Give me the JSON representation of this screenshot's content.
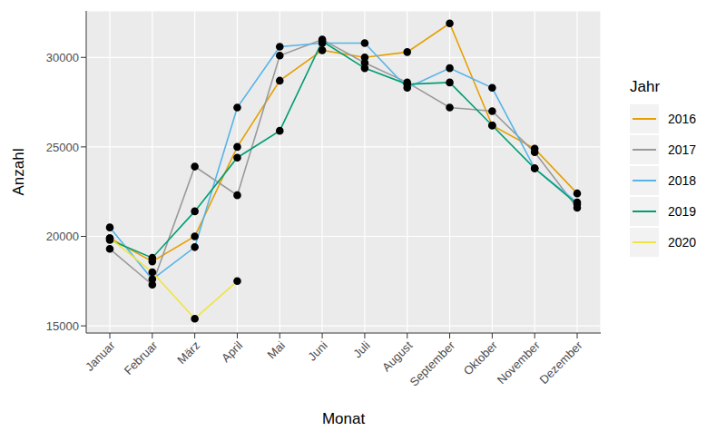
{
  "chart_data": {
    "type": "line",
    "x_label": "Monat",
    "y_label": "Anzahl",
    "legend_title": "Jahr",
    "categories": [
      "Januar",
      "Februar",
      "März",
      "April",
      "Mai",
      "Juni",
      "Juli",
      "August",
      "September",
      "Oktober",
      "November",
      "Dezember"
    ],
    "series": [
      {
        "name": "2016",
        "color": "#E69F00",
        "values": [
          19900,
          18600,
          20000,
          25000,
          28700,
          30400,
          30000,
          30300,
          31900,
          26200,
          24900,
          22400
        ]
      },
      {
        "name": "2017",
        "color": "#999999",
        "values": [
          19300,
          17300,
          23900,
          22300,
          30100,
          31000,
          29700,
          28600,
          27200,
          27000,
          24700,
          21600
        ]
      },
      {
        "name": "2018",
        "color": "#56B4E9",
        "values": [
          20500,
          17600,
          19400,
          27200,
          30600,
          30800,
          30800,
          28300,
          29400,
          28300,
          23800,
          21900
        ]
      },
      {
        "name": "2019",
        "color": "#009E73",
        "values": [
          19800,
          18800,
          21400,
          24400,
          25900,
          30900,
          29400,
          28500,
          28600,
          26200,
          23800,
          21800
        ]
      },
      {
        "name": "2020",
        "color": "#F0E442",
        "values": [
          19900,
          18000,
          15400,
          17500,
          null,
          null,
          null,
          null,
          null,
          null,
          null,
          null
        ]
      }
    ],
    "ylim": [
      14600,
      32600
    ],
    "yticks": [
      15000,
      20000,
      25000,
      30000
    ],
    "grid": true,
    "legend": "right",
    "marker": "circle"
  }
}
